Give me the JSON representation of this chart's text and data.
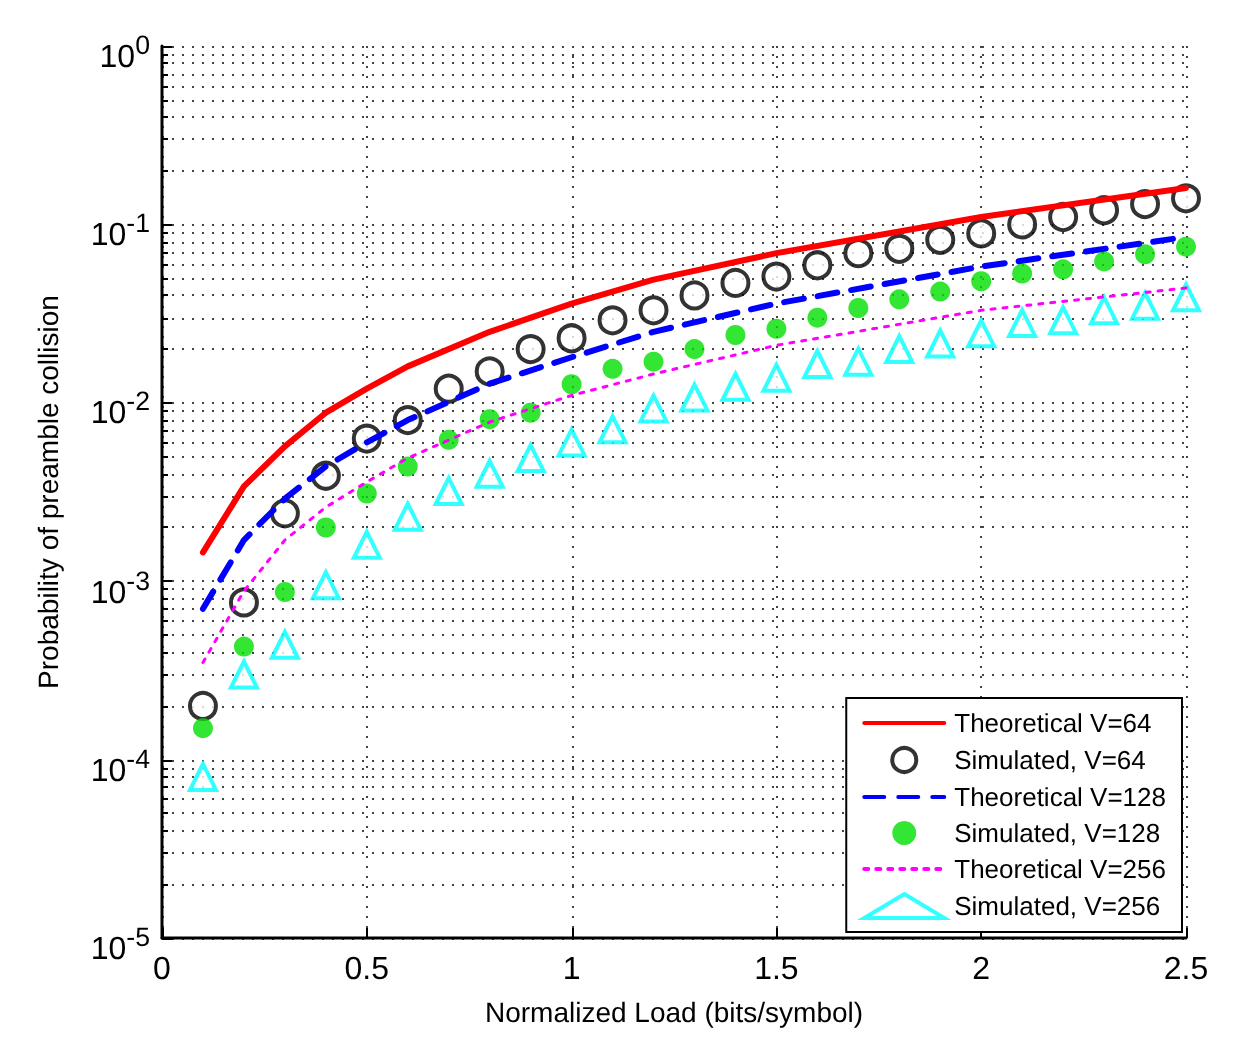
{
  "chart_data": {
    "type": "line",
    "xlabel": "Normalized Load (bits/symbol)",
    "ylabel": "Probability of preamble collision",
    "log": "y",
    "grid": true,
    "legend": "bottom right",
    "xlim": [
      0,
      2.5
    ],
    "xticks": [
      0,
      0.5,
      1,
      1.5,
      2,
      2.5
    ],
    "ylim": [
      1e-05,
      1
    ],
    "yticks": [
      {
        "value": 1e-05,
        "label": "10$^{-5}$"
      },
      {
        "value": 0.0001,
        "label": "10$^{-4}$"
      },
      {
        "value": 0.001,
        "label": "10$^{-3}$"
      },
      {
        "value": 0.01,
        "label": "10$^{-2}$"
      },
      {
        "value": 0.1,
        "label": "10$^{-1}$"
      },
      {
        "value": 1,
        "label": "10$^{0}$"
      }
    ],
    "x": [
      0.1,
      0.2,
      0.3,
      0.4,
      0.5,
      0.6,
      0.7,
      0.8,
      0.9,
      1.0,
      1.1,
      1.2,
      1.3,
      1.4,
      1.5,
      1.6,
      1.7,
      1.8,
      1.9,
      2.0,
      2.1,
      2.2,
      2.3,
      2.4,
      2.5
    ],
    "series": [
      {
        "name": "Theoretical V=64",
        "type": "line",
        "color": "#ff0000",
        "marker": "none",
        "line_style": "solid",
        "x": [
          0.1,
          0.2,
          0.3,
          0.4,
          0.5,
          0.6,
          0.8,
          1.0,
          1.2,
          1.5,
          2.0,
          2.5
        ],
        "values": [
          0.00145,
          0.0034,
          0.0057,
          0.0088,
          0.012,
          0.016,
          0.025,
          0.036,
          0.049,
          0.069,
          0.11,
          0.16
        ]
      },
      {
        "name": "Simulated, V=64",
        "type": "scatter",
        "color": "#000000",
        "marker": "circle",
        "values": [
          0.0002,
          0.00076,
          0.0024,
          0.0039,
          0.0063,
          0.008,
          0.012,
          0.015,
          0.02,
          0.023,
          0.029,
          0.033,
          0.04,
          0.047,
          0.051,
          0.059,
          0.069,
          0.073,
          0.082,
          0.089,
          0.1,
          0.11,
          0.12,
          0.13,
          0.14
        ]
      },
      {
        "name": "Theoretical V=128",
        "type": "line",
        "color": "#0000ff",
        "marker": "none",
        "line_style": "dashed",
        "x": [
          0.1,
          0.2,
          0.3,
          0.4,
          0.5,
          0.6,
          0.8,
          1.0,
          1.2,
          1.5,
          2.0,
          2.5
        ],
        "values": [
          0.0007,
          0.0017,
          0.0029,
          0.0044,
          0.006,
          0.008,
          0.0128,
          0.018,
          0.025,
          0.036,
          0.058,
          0.085
        ]
      },
      {
        "name": "Simulated, V=128",
        "type": "scatter",
        "color": "#00e000",
        "marker": "circle",
        "values": [
          0.00015,
          0.00043,
          0.00087,
          0.002,
          0.0031,
          0.0044,
          0.0062,
          0.0081,
          0.0088,
          0.0127,
          0.0155,
          0.017,
          0.02,
          0.024,
          0.026,
          0.03,
          0.034,
          0.038,
          0.042,
          0.048,
          0.053,
          0.056,
          0.062,
          0.068,
          0.075
        ]
      },
      {
        "name": "Theoretical V=256",
        "type": "line",
        "color": "#ff00ff",
        "marker": "none",
        "line_style": "dotted",
        "x": [
          0.1,
          0.2,
          0.3,
          0.4,
          0.5,
          0.6,
          0.8,
          1.0,
          1.2,
          1.5,
          2.0,
          2.5
        ],
        "values": [
          0.00035,
          0.00088,
          0.0017,
          0.0026,
          0.0036,
          0.0049,
          0.0078,
          0.011,
          0.0145,
          0.021,
          0.033,
          0.044
        ]
      },
      {
        "name": "Simulated, V=256",
        "type": "scatter",
        "color": "#00ffff",
        "marker": "triangle",
        "values": [
          8e-05,
          0.0003,
          0.00044,
          0.00095,
          0.0016,
          0.0023,
          0.0032,
          0.004,
          0.0049,
          0.006,
          0.0071,
          0.0093,
          0.0107,
          0.0123,
          0.0138,
          0.0165,
          0.017,
          0.02,
          0.0215,
          0.0245,
          0.028,
          0.029,
          0.033,
          0.035,
          0.039
        ]
      }
    ]
  }
}
